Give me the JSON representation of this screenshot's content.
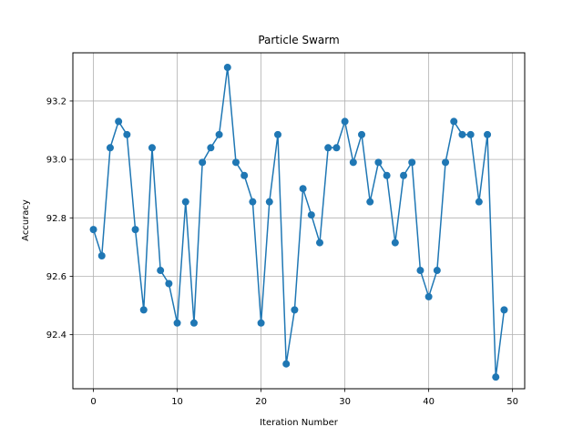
{
  "chart_data": {
    "type": "line",
    "title": "Particle Swarm",
    "xlabel": "Iteration Number",
    "ylabel": "Accuracy",
    "xlim": [
      -2.45,
      51.45
    ],
    "ylim": [
      92.215,
      93.365
    ],
    "xticks": [
      0,
      10,
      20,
      30,
      40,
      50
    ],
    "yticks": [
      92.4,
      92.6,
      92.8,
      93.0,
      93.2
    ],
    "ytick_labels": [
      "92.4",
      "92.6",
      "92.8",
      "93.0",
      "93.2"
    ],
    "grid": true,
    "marker": "circle",
    "color": "#1f77b4",
    "series": [
      {
        "x": [
          0,
          1,
          2,
          3,
          4,
          5,
          6,
          7,
          8,
          9,
          10,
          11,
          12,
          13,
          14,
          15,
          16,
          17,
          18,
          19,
          20,
          21,
          22,
          23,
          24,
          25,
          26,
          27,
          28,
          29,
          30,
          31,
          32,
          33,
          34,
          35,
          36,
          37,
          38,
          39,
          40,
          41,
          42,
          43,
          44,
          45,
          46,
          47,
          48,
          49
        ],
        "values": [
          92.76,
          92.67,
          93.04,
          93.13,
          93.085,
          92.76,
          92.485,
          93.04,
          92.62,
          92.575,
          92.44,
          92.855,
          92.44,
          92.99,
          93.04,
          93.085,
          93.315,
          92.99,
          92.945,
          92.855,
          92.44,
          92.855,
          93.085,
          92.3,
          92.485,
          92.9,
          92.81,
          92.715,
          93.04,
          93.04,
          93.13,
          92.99,
          93.085,
          92.855,
          92.99,
          92.945,
          92.715,
          92.945,
          92.99,
          92.62,
          92.53,
          92.62,
          92.99,
          93.13,
          93.085,
          93.085,
          92.855,
          93.085,
          92.255,
          92.485
        ]
      }
    ]
  }
}
